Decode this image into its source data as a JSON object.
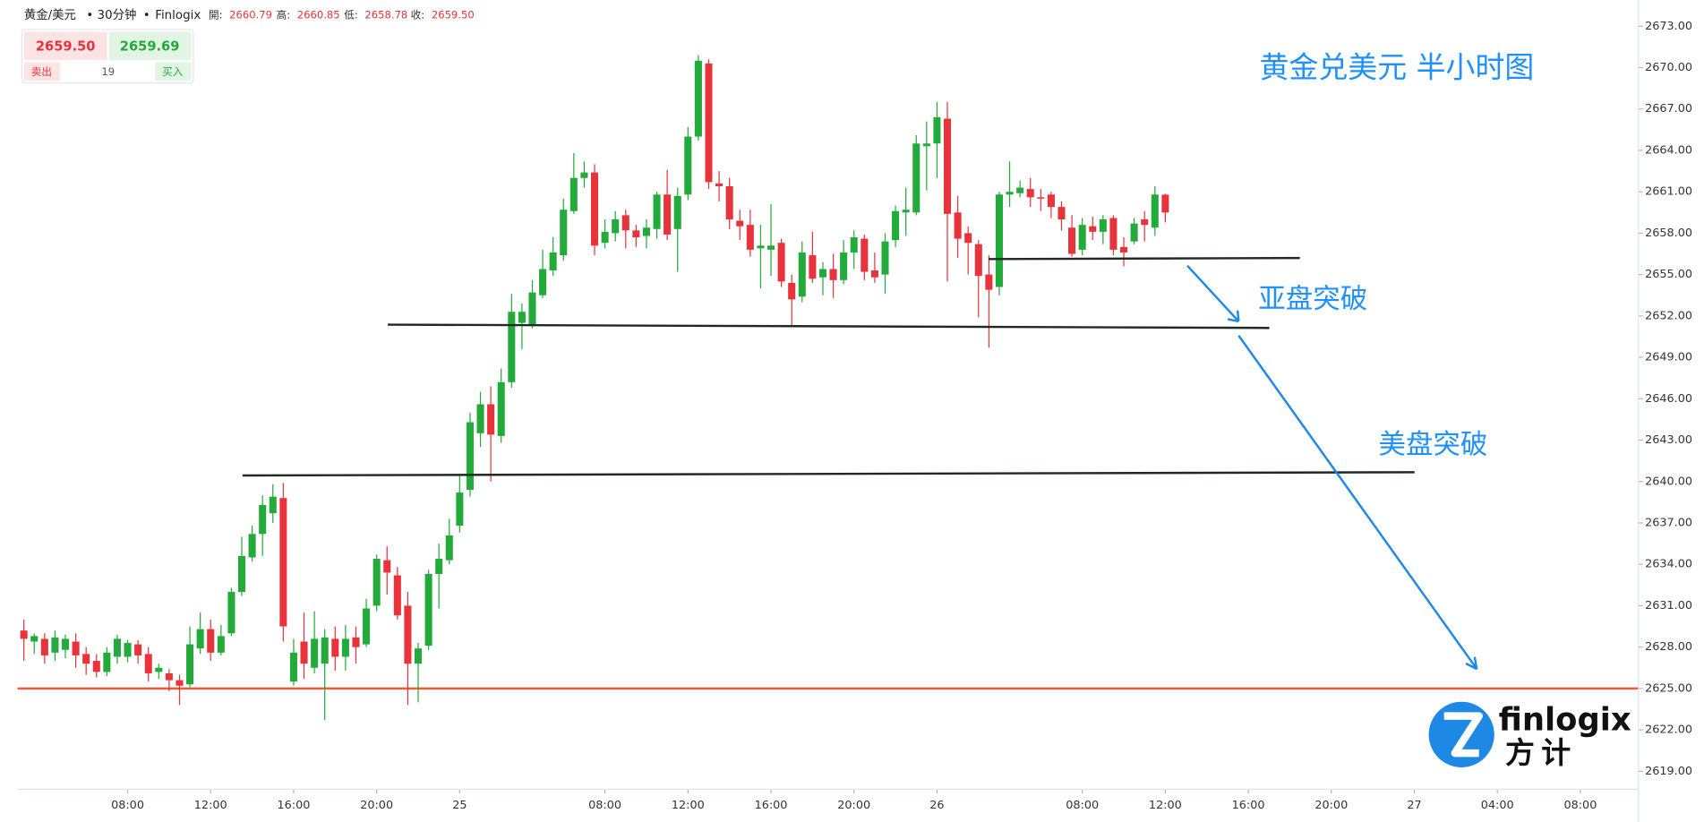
{
  "header": {
    "symbol": "黄金/美元",
    "dot1": "•",
    "interval": "30分钟",
    "dot2": "•",
    "source": "Finlogix",
    "open_label": "開:",
    "open": "2660.79",
    "high_label": "高:",
    "high": "2660.85",
    "low_label": "低:",
    "low": "2658.78",
    "close_label": "收:",
    "close": "2659.50"
  },
  "quote": {
    "sell_price": "2659.50",
    "buy_price": "2659.69",
    "sell_label": "卖出",
    "spread": "19",
    "buy_label": "买入"
  },
  "logo": {
    "name": "finlogix",
    "cn_name": "方计"
  },
  "chart_data": {
    "type": "candlestick",
    "title": "黄金兑美元 半小时图",
    "annotations": [
      "亚盘突破",
      "美盘突破"
    ],
    "up_color": "#22ab3b",
    "down_color": "#e8333c",
    "reference_line": {
      "value": 2625,
      "color": "#ee5a3c"
    },
    "ylim": [
      2617.7,
      2674.9
    ],
    "yticks": [
      {
        "value": 2619,
        "label": "2619.00"
      },
      {
        "value": 2622,
        "label": "2622.00"
      },
      {
        "value": 2625,
        "label": "2625.00"
      },
      {
        "value": 2628,
        "label": "2628.00"
      },
      {
        "value": 2631,
        "label": "2631.00"
      },
      {
        "value": 2634,
        "label": "2634.00"
      },
      {
        "value": 2637,
        "label": "2637.00"
      },
      {
        "value": 2640,
        "label": "2640.00"
      },
      {
        "value": 2643,
        "label": "2643.00"
      },
      {
        "value": 2646,
        "label": "2646.00"
      },
      {
        "value": 2649,
        "label": "2649.00"
      },
      {
        "value": 2652,
        "label": "2652.00"
      },
      {
        "value": 2655,
        "label": "2655.00"
      },
      {
        "value": 2658,
        "label": "2658.00"
      },
      {
        "value": 2661,
        "label": "2661.00"
      },
      {
        "value": 2664,
        "label": "2664.00"
      },
      {
        "value": 2667,
        "label": "2667.00"
      },
      {
        "value": 2670,
        "label": "2670.00"
      },
      {
        "value": 2673,
        "label": "2673.00"
      }
    ],
    "xlim": [
      -2.3,
      155.6
    ],
    "xticks": [
      {
        "value": 10,
        "label": "08:00"
      },
      {
        "value": 18,
        "label": "12:00"
      },
      {
        "value": 26,
        "label": "16:00"
      },
      {
        "value": 34,
        "label": "20:00"
      },
      {
        "value": 42,
        "label": "25"
      },
      {
        "value": 56,
        "label": "08:00"
      },
      {
        "value": 64,
        "label": "12:00"
      },
      {
        "value": 72,
        "label": "16:00"
      },
      {
        "value": 80,
        "label": "20:00"
      },
      {
        "value": 88,
        "label": "26"
      },
      {
        "value": 102,
        "label": "08:00"
      },
      {
        "value": 110,
        "label": "12:00"
      },
      {
        "value": 118,
        "label": "16:00"
      },
      {
        "value": 126,
        "label": "20:00"
      },
      {
        "value": 134,
        "label": "27"
      },
      {
        "value": 142,
        "label": "04:00"
      },
      {
        "value": 150,
        "label": "08:00"
      }
    ],
    "x": [
      0,
      1,
      2,
      3,
      4,
      5,
      6,
      7,
      8,
      9,
      10,
      11,
      12,
      13,
      14,
      15,
      16,
      17,
      18,
      19,
      20,
      21,
      22,
      23,
      24,
      25,
      26,
      27,
      28,
      29,
      30,
      31,
      32,
      33,
      34,
      35,
      36,
      37,
      38,
      39,
      40,
      41,
      42,
      43,
      44,
      45,
      46,
      47,
      48,
      49,
      50,
      51,
      52,
      53,
      54,
      55,
      56,
      57,
      58,
      59,
      60,
      61,
      62,
      63,
      64,
      65,
      66,
      67,
      68,
      69,
      70,
      71,
      72,
      73,
      74,
      75,
      76,
      77,
      78,
      79,
      80,
      81,
      82,
      83,
      84,
      85,
      86,
      87,
      88,
      89,
      90,
      91,
      92,
      93,
      94,
      95,
      96,
      97,
      98,
      99,
      100,
      101,
      102,
      103,
      104,
      105,
      106,
      107,
      108,
      109,
      110
    ],
    "open": [
      2629.2,
      2628.4,
      2628.6,
      2627.6,
      2627.8,
      2628.4,
      2627.5,
      2627.0,
      2626.2,
      2627.3,
      2627.3,
      2628.2,
      2627.5,
      2626.2,
      2626.1,
      2625.6,
      2625.3,
      2627.9,
      2629.3,
      2627.6,
      2629.0,
      2632.0,
      2634.5,
      2636.2,
      2637.7,
      2638.8,
      2625.5,
      2628.4,
      2626.5,
      2626.8,
      2628.6,
      2627.3,
      2628.7,
      2628.2,
      2631.0,
      2634.3,
      2633.2,
      2631.0,
      2626.8,
      2628.1,
      2633.3,
      2634.3,
      2636.8,
      2639.4,
      2643.5,
      2645.6,
      2643.3,
      2647.2,
      2651.5,
      2651.4,
      2653.5,
      2655.3,
      2656.4,
      2659.6,
      2662.0,
      2662.4,
      2657.3,
      2658.0,
      2659.3,
      2658.2,
      2657.8,
      2658.3,
      2660.8,
      2658.3,
      2660.8,
      2665.0,
      2670.3,
      2661.6,
      2661.4,
      2658.9,
      2658.6,
      2656.9,
      2656.8,
      2657.3,
      2654.4,
      2653.4,
      2656.4,
      2654.8,
      2655.4,
      2654.6,
      2656.6,
      2657.6,
      2655.3,
      2655.0,
      2657.5,
      2659.5,
      2659.5,
      2664.3,
      2664.5,
      2666.3,
      2659.5,
      2658.0,
      2657.2,
      2655.0,
      2654.1,
      2660.8,
      2660.9,
      2661.2,
      2660.6,
      2660.8,
      2659.9,
      2658.4,
      2656.8,
      2658.5,
      2658.1,
      2659.1,
      2657.0,
      2657.4,
      2659.0,
      2658.4,
      2660.79
    ],
    "high": [
      2630.0,
      2629.0,
      2629.0,
      2629.2,
      2628.9,
      2629.0,
      2628.0,
      2627.5,
      2628.0,
      2628.9,
      2628.5,
      2628.5,
      2628.0,
      2626.8,
      2626.4,
      2626.0,
      2629.5,
      2630.5,
      2630.0,
      2629.6,
      2632.3,
      2636.0,
      2636.8,
      2639.0,
      2639.8,
      2639.9,
      2628.6,
      2630.5,
      2630.6,
      2629.3,
      2629.5,
      2629.6,
      2629.5,
      2631.5,
      2634.7,
      2635.3,
      2633.8,
      2632.0,
      2628.3,
      2633.6,
      2635.5,
      2637.3,
      2640.5,
      2645.0,
      2646.5,
      2646.9,
      2648.2,
      2653.6,
      2652.9,
      2654.6,
      2656.8,
      2657.7,
      2660.5,
      2663.8,
      2663.2,
      2663.0,
      2659.0,
      2659.6,
      2659.7,
      2658.6,
      2659.0,
      2661.0,
      2662.6,
      2661.3,
      2665.7,
      2670.9,
      2670.6,
      2662.5,
      2662.0,
      2659.7,
      2659.7,
      2658.6,
      2660.1,
      2657.6,
      2655.0,
      2657.4,
      2658.1,
      2655.9,
      2656.5,
      2657.5,
      2658.2,
      2657.9,
      2656.6,
      2658.0,
      2660.0,
      2661.3,
      2665.1,
      2666.1,
      2667.5,
      2667.5,
      2660.7,
      2658.5,
      2657.5,
      2656.4,
      2661.0,
      2663.2,
      2661.8,
      2662.0,
      2661.2,
      2661.0,
      2660.3,
      2659.3,
      2659.1,
      2659.2,
      2659.3,
      2659.3,
      2657.7,
      2659.1,
      2659.6,
      2661.4,
      2660.85
    ],
    "low": [
      2627.0,
      2627.5,
      2626.8,
      2627.0,
      2627.2,
      2626.5,
      2626.0,
      2625.8,
      2625.9,
      2626.8,
      2626.9,
      2626.8,
      2625.5,
      2625.7,
      2624.8,
      2623.8,
      2625.1,
      2627.5,
      2627.0,
      2627.4,
      2628.8,
      2631.7,
      2634.2,
      2634.6,
      2637.0,
      2628.4,
      2625.2,
      2625.7,
      2626.1,
      2622.7,
      2626.3,
      2626.3,
      2626.8,
      2628.0,
      2630.6,
      2631.8,
      2630.0,
      2623.8,
      2624.0,
      2627.8,
      2630.8,
      2634.0,
      2636.3,
      2638.9,
      2642.5,
      2640.0,
      2642.8,
      2646.8,
      2649.6,
      2651.1,
      2653.3,
      2654.9,
      2656.0,
      2659.4,
      2661.3,
      2656.4,
      2656.9,
      2657.4,
      2656.9,
      2657.0,
      2656.9,
      2657.6,
      2657.5,
      2655.2,
      2660.4,
      2664.7,
      2661.2,
      2660.3,
      2658.3,
      2657.5,
      2656.3,
      2654.0,
      2654.9,
      2654.1,
      2651.3,
      2653.0,
      2654.4,
      2653.5,
      2653.3,
      2654.3,
      2655.4,
      2654.6,
      2654.4,
      2653.6,
      2657.0,
      2657.8,
      2659.3,
      2661.1,
      2662.0,
      2654.5,
      2656.2,
      2655.0,
      2651.9,
      2649.7,
      2653.5,
      2659.9,
      2660.6,
      2659.9,
      2659.6,
      2659.1,
      2658.2,
      2656.3,
      2656.4,
      2657.5,
      2657.2,
      2656.4,
      2655.6,
      2657.2,
      2657.4,
      2657.8,
      2658.78
    ],
    "close": [
      2628.6,
      2628.8,
      2627.4,
      2628.7,
      2628.6,
      2627.4,
      2626.8,
      2626.2,
      2627.6,
      2628.6,
      2628.3,
      2627.4,
      2626.1,
      2626.5,
      2625.6,
      2625.2,
      2628.2,
      2629.3,
      2627.6,
      2628.8,
      2632.0,
      2634.6,
      2636.2,
      2638.3,
      2638.9,
      2629.5,
      2627.6,
      2626.8,
      2628.6,
      2628.7,
      2627.3,
      2628.6,
      2628.0,
      2630.8,
      2634.4,
      2633.4,
      2630.3,
      2626.8,
      2627.9,
      2633.3,
      2634.4,
      2636.1,
      2639.2,
      2644.3,
      2645.6,
      2643.4,
      2647.2,
      2652.3,
      2652.3,
      2653.7,
      2655.4,
      2656.6,
      2659.7,
      2662.0,
      2662.4,
      2657.1,
      2658.1,
      2659.0,
      2658.2,
      2657.7,
      2658.4,
      2660.8,
      2657.9,
      2660.7,
      2665.0,
      2670.5,
      2661.7,
      2661.4,
      2659.0,
      2658.5,
      2656.8,
      2657.1,
      2657.1,
      2654.5,
      2653.2,
      2656.6,
      2654.7,
      2655.4,
      2654.6,
      2656.6,
      2657.7,
      2655.2,
      2654.8,
      2657.4,
      2659.6,
      2659.7,
      2664.5,
      2664.5,
      2666.4,
      2659.4,
      2657.6,
      2657.3,
      2654.9,
      2653.9,
      2660.8,
      2661.0,
      2661.3,
      2660.6,
      2660.5,
      2659.9,
      2659.0,
      2656.5,
      2658.6,
      2658.1,
      2659.0,
      2656.8,
      2656.6,
      2658.7,
      2658.6,
      2660.8,
      2659.5
    ]
  }
}
